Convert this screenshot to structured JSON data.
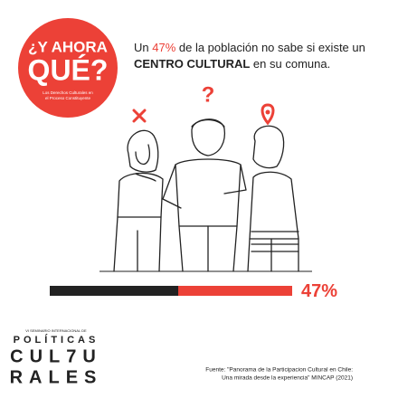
{
  "logo": {
    "line1": "¿Y AHORA",
    "line2": "QUÉ?",
    "tagline1": "Los Derechos Culturales en",
    "tagline2": "el Proceso Constituyente"
  },
  "headline": {
    "part1": "Un ",
    "highlight": "47%",
    "part2": " de la población no sabe si existe un",
    "bold": "CENTRO CULTURAL",
    "part3": " en su comuna."
  },
  "chart_data": {
    "type": "bar",
    "orientation": "horizontal",
    "values": [
      47
    ],
    "value_labels": [
      "47%"
    ],
    "color": "#ec4137",
    "xlim": [
      0,
      100
    ]
  },
  "footer": {
    "seminar": "VI SEMINARIO INTERNACIONAL DE",
    "word1": "POLÍTICAS",
    "word2": "CUL7U",
    "word3": "RALES",
    "source1": "Fuente: \"Panorama de la Participacion Cultural en Chile:",
    "source2": "Una mirada desde la experiencia\" MINCAP (2021)"
  }
}
